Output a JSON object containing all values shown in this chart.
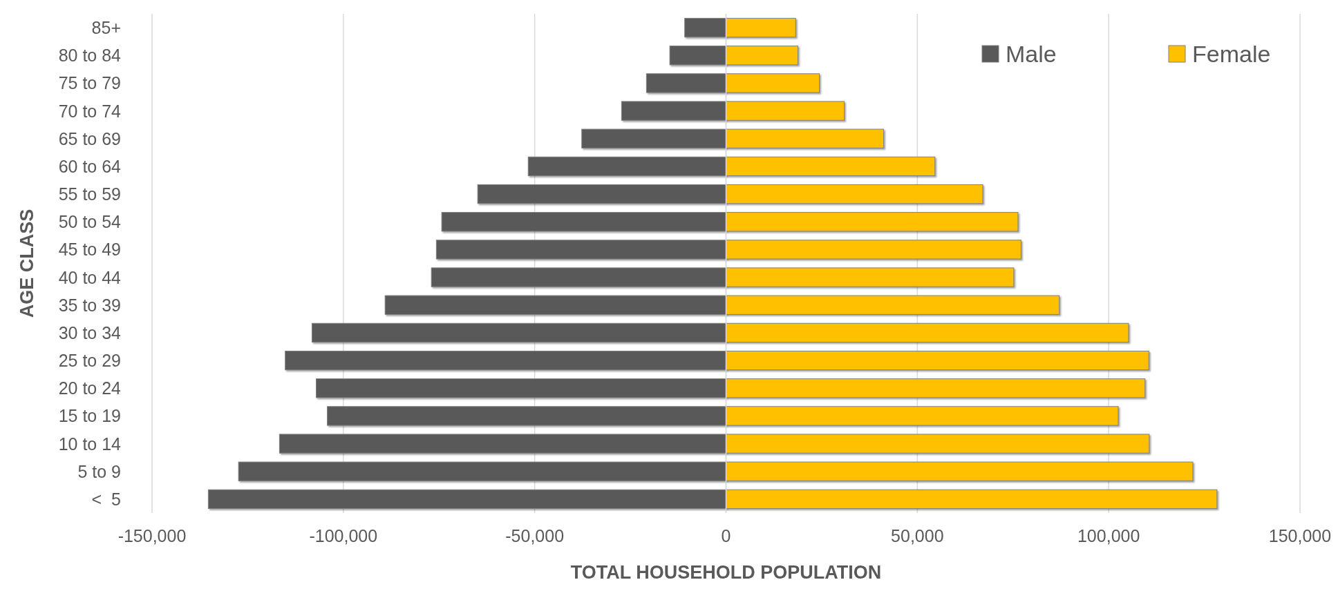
{
  "chart_data": {
    "type": "bar",
    "orientation": "horizontal",
    "xlabel": "TOTAL HOUSEHOLD POPULATION",
    "ylabel": "AGE CLASS",
    "categories": [
      "85+",
      "80 to 84",
      "75 to 79",
      "70 to 74",
      "65 to 69",
      "60 to 64",
      "55 to 59",
      "50 to 54",
      "45 to 49",
      "40 to 44",
      "35 to 39",
      "30 to 34",
      "25 to 29",
      "20 to 24",
      "15 to 19",
      "10 to 14",
      "5 to 9",
      "<  5"
    ],
    "series": [
      {
        "name": "Male",
        "color": "#595959",
        "values": [
          -10800,
          -14700,
          -20800,
          -27300,
          -37700,
          -51700,
          -64900,
          -74300,
          -75700,
          -77000,
          -89100,
          -108200,
          -115200,
          -107100,
          -104200,
          -116700,
          -127400,
          -135300
        ]
      },
      {
        "name": "Female",
        "color": "#ffc000",
        "values": [
          18200,
          18800,
          24400,
          30900,
          41200,
          54600,
          67100,
          76300,
          77100,
          75200,
          87100,
          105200,
          110500,
          109500,
          102500,
          110600,
          122000,
          128300
        ]
      }
    ],
    "xlim": [
      -150000,
      150000
    ],
    "xticks": [
      {
        "value": -150000,
        "label": "-150,000"
      },
      {
        "value": -100000,
        "label": "-100,000"
      },
      {
        "value": -50000,
        "label": "-50,000"
      },
      0,
      {
        "value": 50000,
        "label": "50,000"
      },
      {
        "value": 100000,
        "label": "100,000"
      },
      {
        "value": 150000,
        "label": "150,000"
      }
    ],
    "grid": "x",
    "legend": "top right",
    "stacked": true
  }
}
